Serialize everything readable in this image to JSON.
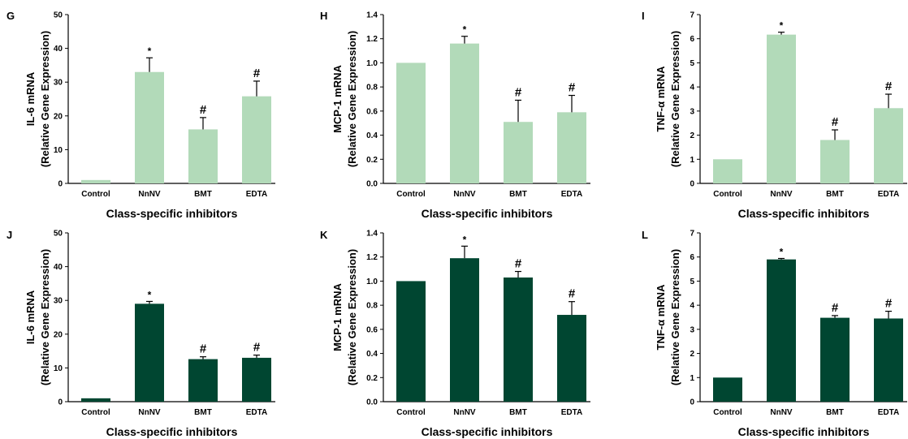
{
  "colors": {
    "light": "#b2dab9",
    "dark": "#004631",
    "axis": "#000000"
  },
  "chart_data": [
    {
      "type": "bar",
      "panel": "G",
      "categories": [
        "Control",
        "NnNV",
        "BMT",
        "EDTA"
      ],
      "values": [
        1,
        33,
        16,
        25.8
      ],
      "errors": [
        0,
        4.2,
        3.5,
        4.5
      ],
      "marks": [
        "",
        "*",
        "#",
        "#"
      ],
      "ylabel_lines": [
        "IL-6 mRNA",
        "(Relative Gene Expression)"
      ],
      "xlabel": "Class-specific inhibitors",
      "ylim": [
        0,
        50
      ],
      "ticks": [
        "0",
        "10",
        "20",
        "30",
        "40",
        "50"
      ],
      "color": "#b2dab9"
    },
    {
      "type": "bar",
      "panel": "H",
      "categories": [
        "Control",
        "NnNV",
        "BMT",
        "EDTA"
      ],
      "values": [
        1.0,
        1.16,
        0.51,
        0.59
      ],
      "errors": [
        0,
        0.06,
        0.18,
        0.14
      ],
      "marks": [
        "",
        "*",
        "#",
        "#"
      ],
      "ylabel_lines": [
        "MCP-1 mRNA",
        "(Relative Gene Expression)"
      ],
      "xlabel": "Class-specific inhibitors",
      "ylim": [
        0,
        1.4
      ],
      "ticks": [
        "0.0",
        "0.2",
        "0.4",
        "0.6",
        "0.8",
        "1.0",
        "1.2",
        "1.4"
      ],
      "color": "#b2dab9"
    },
    {
      "type": "bar",
      "panel": "I",
      "categories": [
        "Control",
        "NnNV",
        "BMT",
        "EDTA"
      ],
      "values": [
        1,
        6.17,
        1.8,
        3.12
      ],
      "errors": [
        0,
        0.1,
        0.42,
        0.58
      ],
      "marks": [
        "",
        "*",
        "#",
        "#"
      ],
      "ylabel_lines": [
        "TNF-α mRNA",
        "(Relative Gene Expression)"
      ],
      "xlabel": "Class-specific inhibitors",
      "ylim": [
        0,
        7
      ],
      "ticks": [
        "0",
        "1",
        "2",
        "3",
        "4",
        "5",
        "6",
        "7"
      ],
      "color": "#b2dab9"
    },
    {
      "type": "bar",
      "panel": "J",
      "categories": [
        "Control",
        "NnNV",
        "BMT",
        "EDTA"
      ],
      "values": [
        1,
        29,
        12.6,
        13
      ],
      "errors": [
        0,
        0.7,
        0.7,
        0.8
      ],
      "marks": [
        "",
        "*",
        "#",
        "#"
      ],
      "ylabel_lines": [
        "IL-6 mRNA",
        "(Relative Gene Expression)"
      ],
      "xlabel": "Class-specific inhibitors",
      "ylim": [
        0,
        50
      ],
      "ticks": [
        "0",
        "10",
        "20",
        "30",
        "40",
        "50"
      ],
      "color": "#004631"
    },
    {
      "type": "bar",
      "panel": "K",
      "categories": [
        "Control",
        "NnNV",
        "BMT",
        "EDTA"
      ],
      "values": [
        1.0,
        1.19,
        1.03,
        0.72
      ],
      "errors": [
        0,
        0.1,
        0.05,
        0.11
      ],
      "marks": [
        "",
        "*",
        "#",
        "#"
      ],
      "ylabel_lines": [
        "MCP-1 mRNA",
        "(Relative Gene Expression)"
      ],
      "xlabel": "Class-specific inhibitors",
      "ylim": [
        0,
        1.4
      ],
      "ticks": [
        "0.0",
        "0.2",
        "0.4",
        "0.6",
        "0.8",
        "1.0",
        "1.2",
        "1.4"
      ],
      "color": "#004631"
    },
    {
      "type": "bar",
      "panel": "L",
      "categories": [
        "Control",
        "NnNV",
        "BMT",
        "EDTA"
      ],
      "values": [
        1,
        5.9,
        3.48,
        3.45
      ],
      "errors": [
        0,
        0.04,
        0.09,
        0.3
      ],
      "marks": [
        "",
        "*",
        "#",
        "#"
      ],
      "ylabel_lines": [
        "TNF-α mRNA",
        "(Relative Gene Expression)"
      ],
      "xlabel": "Class-specific inhibitors",
      "ylim": [
        0,
        7
      ],
      "ticks": [
        "0",
        "1",
        "2",
        "3",
        "4",
        "5",
        "6",
        "7"
      ],
      "color": "#004631"
    }
  ]
}
